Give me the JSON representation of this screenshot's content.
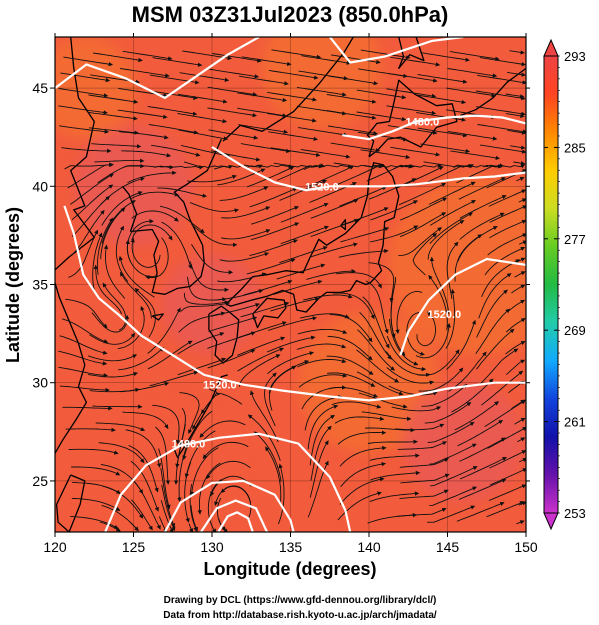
{
  "title": "MSM 03Z31Jul2023 (850.0hPa)",
  "xlabel": "Longitude (degrees)",
  "ylabel": "Latitude  (degrees)",
  "xticks": [
    120,
    125,
    130,
    135,
    140,
    145,
    150
  ],
  "yticks": [
    25,
    30,
    35,
    40,
    45
  ],
  "xlim": [
    120,
    150
  ],
  "ylim": [
    22.4,
    47.6
  ],
  "colorbar": {
    "min": 253,
    "max": 293,
    "labels": [
      293,
      285,
      277,
      269,
      261,
      253
    ],
    "colors": [
      "#cc33cc",
      "#6611aa",
      "#1111aa",
      "#1144dd",
      "#11aaff",
      "#22ccaa",
      "#22bb44",
      "#66cc22",
      "#ccdd22",
      "#ffcc00",
      "#ff8800",
      "#ff4422",
      "#ee4444"
    ]
  },
  "contour_labels": [
    {
      "text": "1480.0",
      "lon": 143.4,
      "lat": 43.3
    },
    {
      "text": "1520.0",
      "lon": 137.0,
      "lat": 40.0
    },
    {
      "text": "1520.0",
      "lon": 144.8,
      "lat": 33.5
    },
    {
      "text": "1520.0",
      "lon": 130.5,
      "lat": 29.9
    },
    {
      "text": "1480.0",
      "lon": 128.5,
      "lat": 26.9
    }
  ],
  "credits": [
    "Drawing by DCL (https://www.gfd-dennou.org/library/dcl/)",
    "Data from http://database.rish.kyoto-u.ac.jp/arch/jmadata/"
  ],
  "colors": {
    "field_base": "#f25c3c",
    "field_warm": "#f5702e",
    "field_pink": "#e8585a",
    "stream": "#111111",
    "coast": "#000000",
    "contour": "#ffffff"
  }
}
